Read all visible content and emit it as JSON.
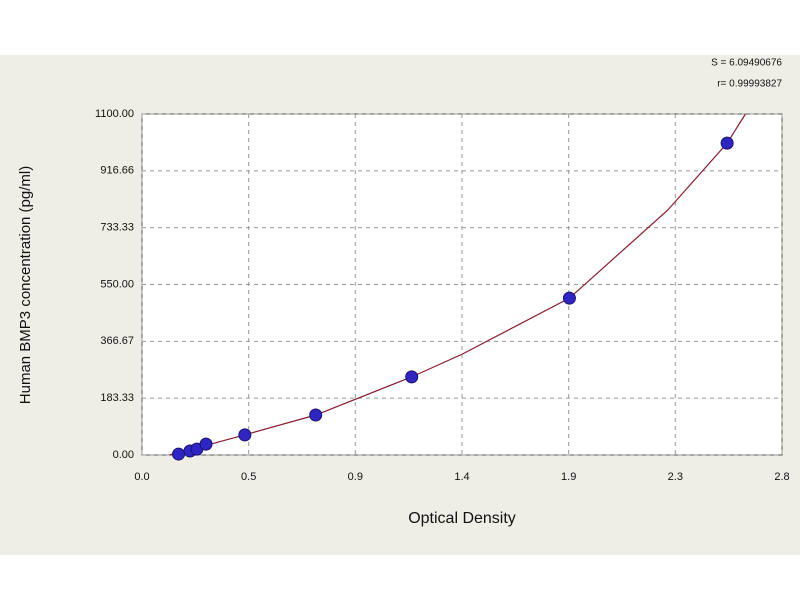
{
  "chart_data": {
    "type": "scatter",
    "x_label": "Optical Density",
    "y_label": "Human BMP3 concentration (pg/ml)",
    "annotations": [
      "S = 6.09490676",
      "r= 0.99993827"
    ],
    "x": [
      0.16,
      0.21,
      0.24,
      0.28,
      0.45,
      0.76,
      1.18,
      1.87,
      2.56
    ],
    "values": [
      3,
      13,
      19,
      35,
      65,
      129,
      252,
      506,
      1006
    ],
    "color": "#2f24c4",
    "fit": {
      "color": "#8b1a2e",
      "x": [
        0.12,
        0.3,
        0.45,
        0.76,
        1.18,
        1.4,
        1.87,
        2.3,
        2.56,
        2.64
      ],
      "values": [
        0,
        35,
        65,
        129,
        252,
        325,
        506,
        790,
        1006,
        1100
      ]
    },
    "xlim": [
      0,
      2.8
    ],
    "xticks": [
      {
        "value": 0,
        "label": "0.0"
      },
      {
        "value": 0.4667,
        "label": "0.5"
      },
      {
        "value": 0.9333,
        "label": "0.9"
      },
      1.4,
      {
        "value": 1.8667,
        "label": "1.9"
      },
      {
        "value": 2.3333,
        "label": "2.3"
      },
      2.8
    ],
    "ylim": [
      0,
      1100
    ],
    "yticks": [
      {
        "value": 0,
        "label": "0.00"
      },
      183.33,
      366.67,
      {
        "value": 550,
        "label": "550.00"
      },
      733.33,
      916.66,
      {
        "value": 1100,
        "label": "1100.00"
      }
    ],
    "grid": true
  }
}
